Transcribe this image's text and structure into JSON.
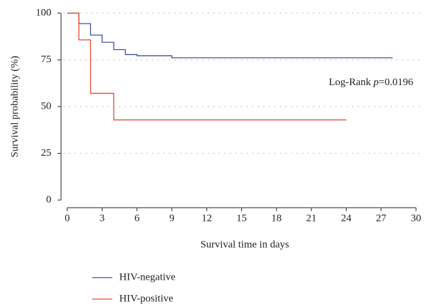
{
  "chart_data": {
    "type": "step",
    "xlabel": "Survival time in days",
    "ylabel": "Survival probability (%)",
    "annotation": [
      "Log-Rank ",
      "p",
      "=0.0196"
    ],
    "xlim": [
      0,
      30
    ],
    "xticks": [
      0,
      3,
      6,
      9,
      12,
      15,
      18,
      21,
      24,
      27,
      30
    ],
    "ylim": [
      0,
      100
    ],
    "yticks": [
      0,
      25,
      50,
      75,
      100
    ],
    "grid": true,
    "series": [
      {
        "name": "HIV-negative",
        "color": "#3b4f9c",
        "x": [
          0,
          1,
          2,
          3,
          4,
          5,
          6,
          9,
          28
        ],
        "values": [
          100,
          94.4,
          88.3,
          84.4,
          80.5,
          77.9,
          77.2,
          76.1,
          76.1
        ]
      },
      {
        "name": "HIV-positive",
        "color": "#e5482b",
        "x": [
          0,
          1,
          2,
          4,
          24
        ],
        "values": [
          100,
          85.7,
          57.1,
          42.9,
          42.9
        ]
      }
    ]
  }
}
